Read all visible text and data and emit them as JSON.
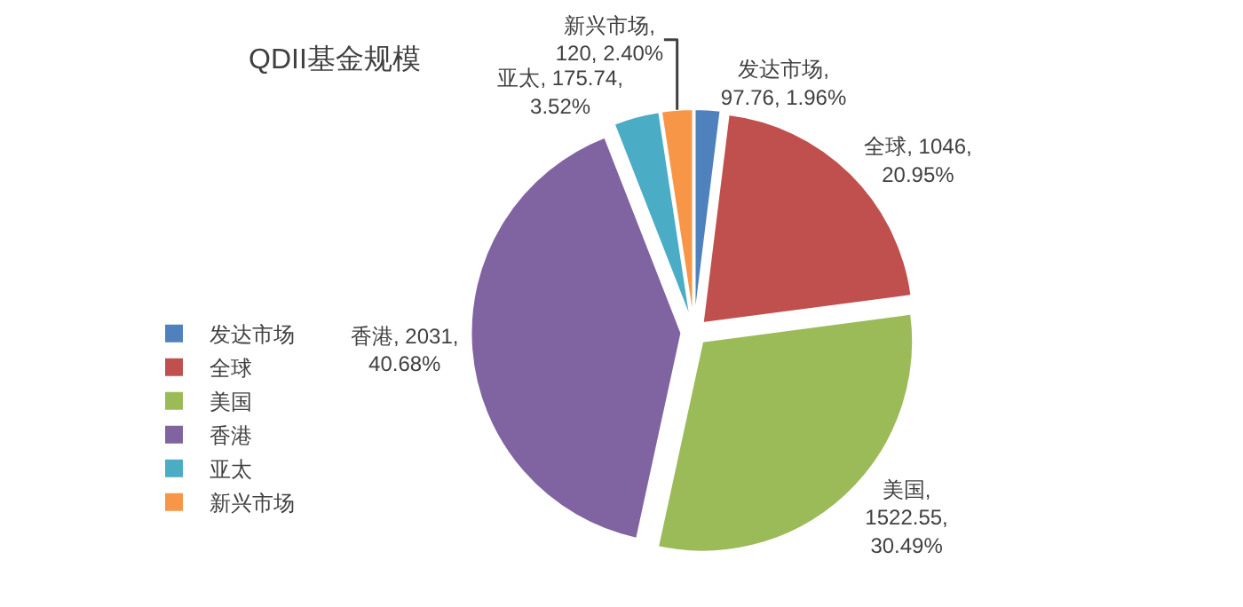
{
  "chart_data": {
    "type": "pie",
    "title": "QDII基金规模",
    "categories": [
      "发达市场",
      "全球",
      "美国",
      "香港",
      "亚太",
      "新兴市场"
    ],
    "values": [
      97.76,
      1046,
      1522.55,
      2031,
      175.74,
      120
    ],
    "colors": [
      "#4f81bd",
      "#c0504d",
      "#9bbb59",
      "#8064a2",
      "#4bacc6",
      "#f79646"
    ],
    "value_labels": [
      "发达市场,\n97.76, 1.96%",
      "全球, 1046,\n20.95%",
      "美国,\n1522.55,\n30.49%",
      "香港, 2031,\n40.68%",
      "亚太, 175.74,\n3.52%",
      "新兴市场,\n120, 2.40%"
    ],
    "legend": "left"
  }
}
